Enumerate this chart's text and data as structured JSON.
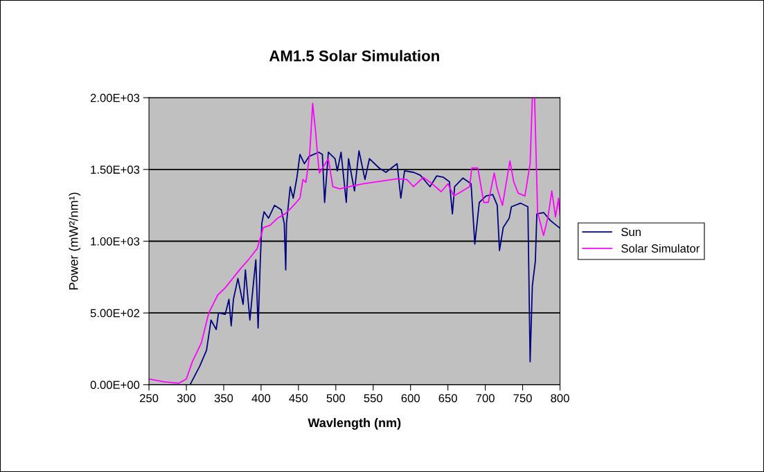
{
  "chart_data": {
    "type": "line",
    "title": "AM1.5 Solar Simulation",
    "xlabel": "Wavlength (nm)",
    "ylabel": "Power (mW²/nm¹)",
    "xlim": [
      250,
      800
    ],
    "xticks": [
      250,
      300,
      350,
      400,
      450,
      500,
      550,
      600,
      650,
      700,
      750,
      800
    ],
    "ylim": [
      0,
      2000
    ],
    "yticks": [
      {
        "value": 0,
        "label": "0.00E+00"
      },
      {
        "value": 500,
        "label": "5.00E+02"
      },
      {
        "value": 1000,
        "label": "1.00E+03"
      },
      {
        "value": 1500,
        "label": "1.50E+03"
      },
      {
        "value": 2000,
        "label": "2.00E+03"
      }
    ],
    "grid": "y",
    "legend": "right",
    "marker": "none",
    "line_style": "solid",
    "series": [
      {
        "name": "Sun",
        "color": "#000080",
        "x": [
          250,
          280,
          305,
          318,
          327,
          333,
          340,
          343,
          352,
          357,
          360,
          363,
          369,
          376,
          379,
          385,
          390,
          393,
          396,
          399,
          401,
          404,
          410,
          418,
          427,
          431,
          433,
          434,
          439,
          443,
          448,
          452,
          458,
          464,
          477,
          482,
          485,
          490,
          499,
          502,
          507,
          514,
          517,
          525,
          531,
          539,
          545,
          558,
          567,
          582,
          587,
          592,
          604,
          613,
          626,
          635,
          644,
          652,
          656,
          659,
          670,
          681,
          686,
          692,
          701,
          710,
          716,
          719,
          724,
          732,
          735,
          747,
          757,
          760,
          763,
          767,
          769,
          778,
          787,
          794,
          800
        ],
        "values": [
          0,
          0,
          0,
          130,
          240,
          450,
          385,
          500,
          490,
          595,
          410,
          595,
          740,
          560,
          800,
          450,
          720,
          870,
          395,
          870,
          1125,
          1205,
          1160,
          1250,
          1220,
          1125,
          800,
          1125,
          1380,
          1300,
          1445,
          1605,
          1540,
          1590,
          1620,
          1605,
          1270,
          1620,
          1575,
          1490,
          1620,
          1270,
          1575,
          1350,
          1630,
          1430,
          1575,
          1510,
          1480,
          1540,
          1300,
          1490,
          1480,
          1460,
          1380,
          1455,
          1445,
          1415,
          1190,
          1380,
          1440,
          1400,
          980,
          1270,
          1315,
          1325,
          1250,
          935,
          1095,
          1160,
          1240,
          1265,
          1240,
          160,
          690,
          860,
          1190,
          1200,
          1145,
          1115,
          1090
        ]
      },
      {
        "name": "Solar Simulator",
        "color": "#ff00ff",
        "x": [
          250,
          270,
          290,
          300,
          308,
          320,
          330,
          342,
          352,
          362,
          372,
          383,
          395,
          403,
          412,
          422,
          432,
          440,
          447,
          452,
          456,
          460,
          465,
          469,
          473,
          476,
          478,
          490,
          496,
          505,
          536,
          582,
          595,
          604,
          617,
          629,
          641,
          650,
          658,
          679,
          682,
          690,
          698,
          704,
          712,
          716,
          723,
          733,
          738,
          744,
          753,
          760,
          763,
          766,
          770,
          778,
          784,
          789,
          794,
          798,
          800
        ],
        "values": [
          40,
          20,
          10,
          40,
          160,
          290,
          500,
          625,
          675,
          740,
          805,
          870,
          950,
          1095,
          1110,
          1160,
          1190,
          1230,
          1270,
          1300,
          1430,
          1410,
          1605,
          1960,
          1760,
          1575,
          1475,
          1575,
          1380,
          1365,
          1400,
          1435,
          1430,
          1380,
          1445,
          1400,
          1345,
          1400,
          1315,
          1380,
          1510,
          1510,
          1270,
          1270,
          1475,
          1365,
          1250,
          1560,
          1415,
          1335,
          1315,
          1540,
          2000,
          2000,
          1200,
          1040,
          1170,
          1350,
          1170,
          1300,
          1185
        ]
      }
    ]
  }
}
